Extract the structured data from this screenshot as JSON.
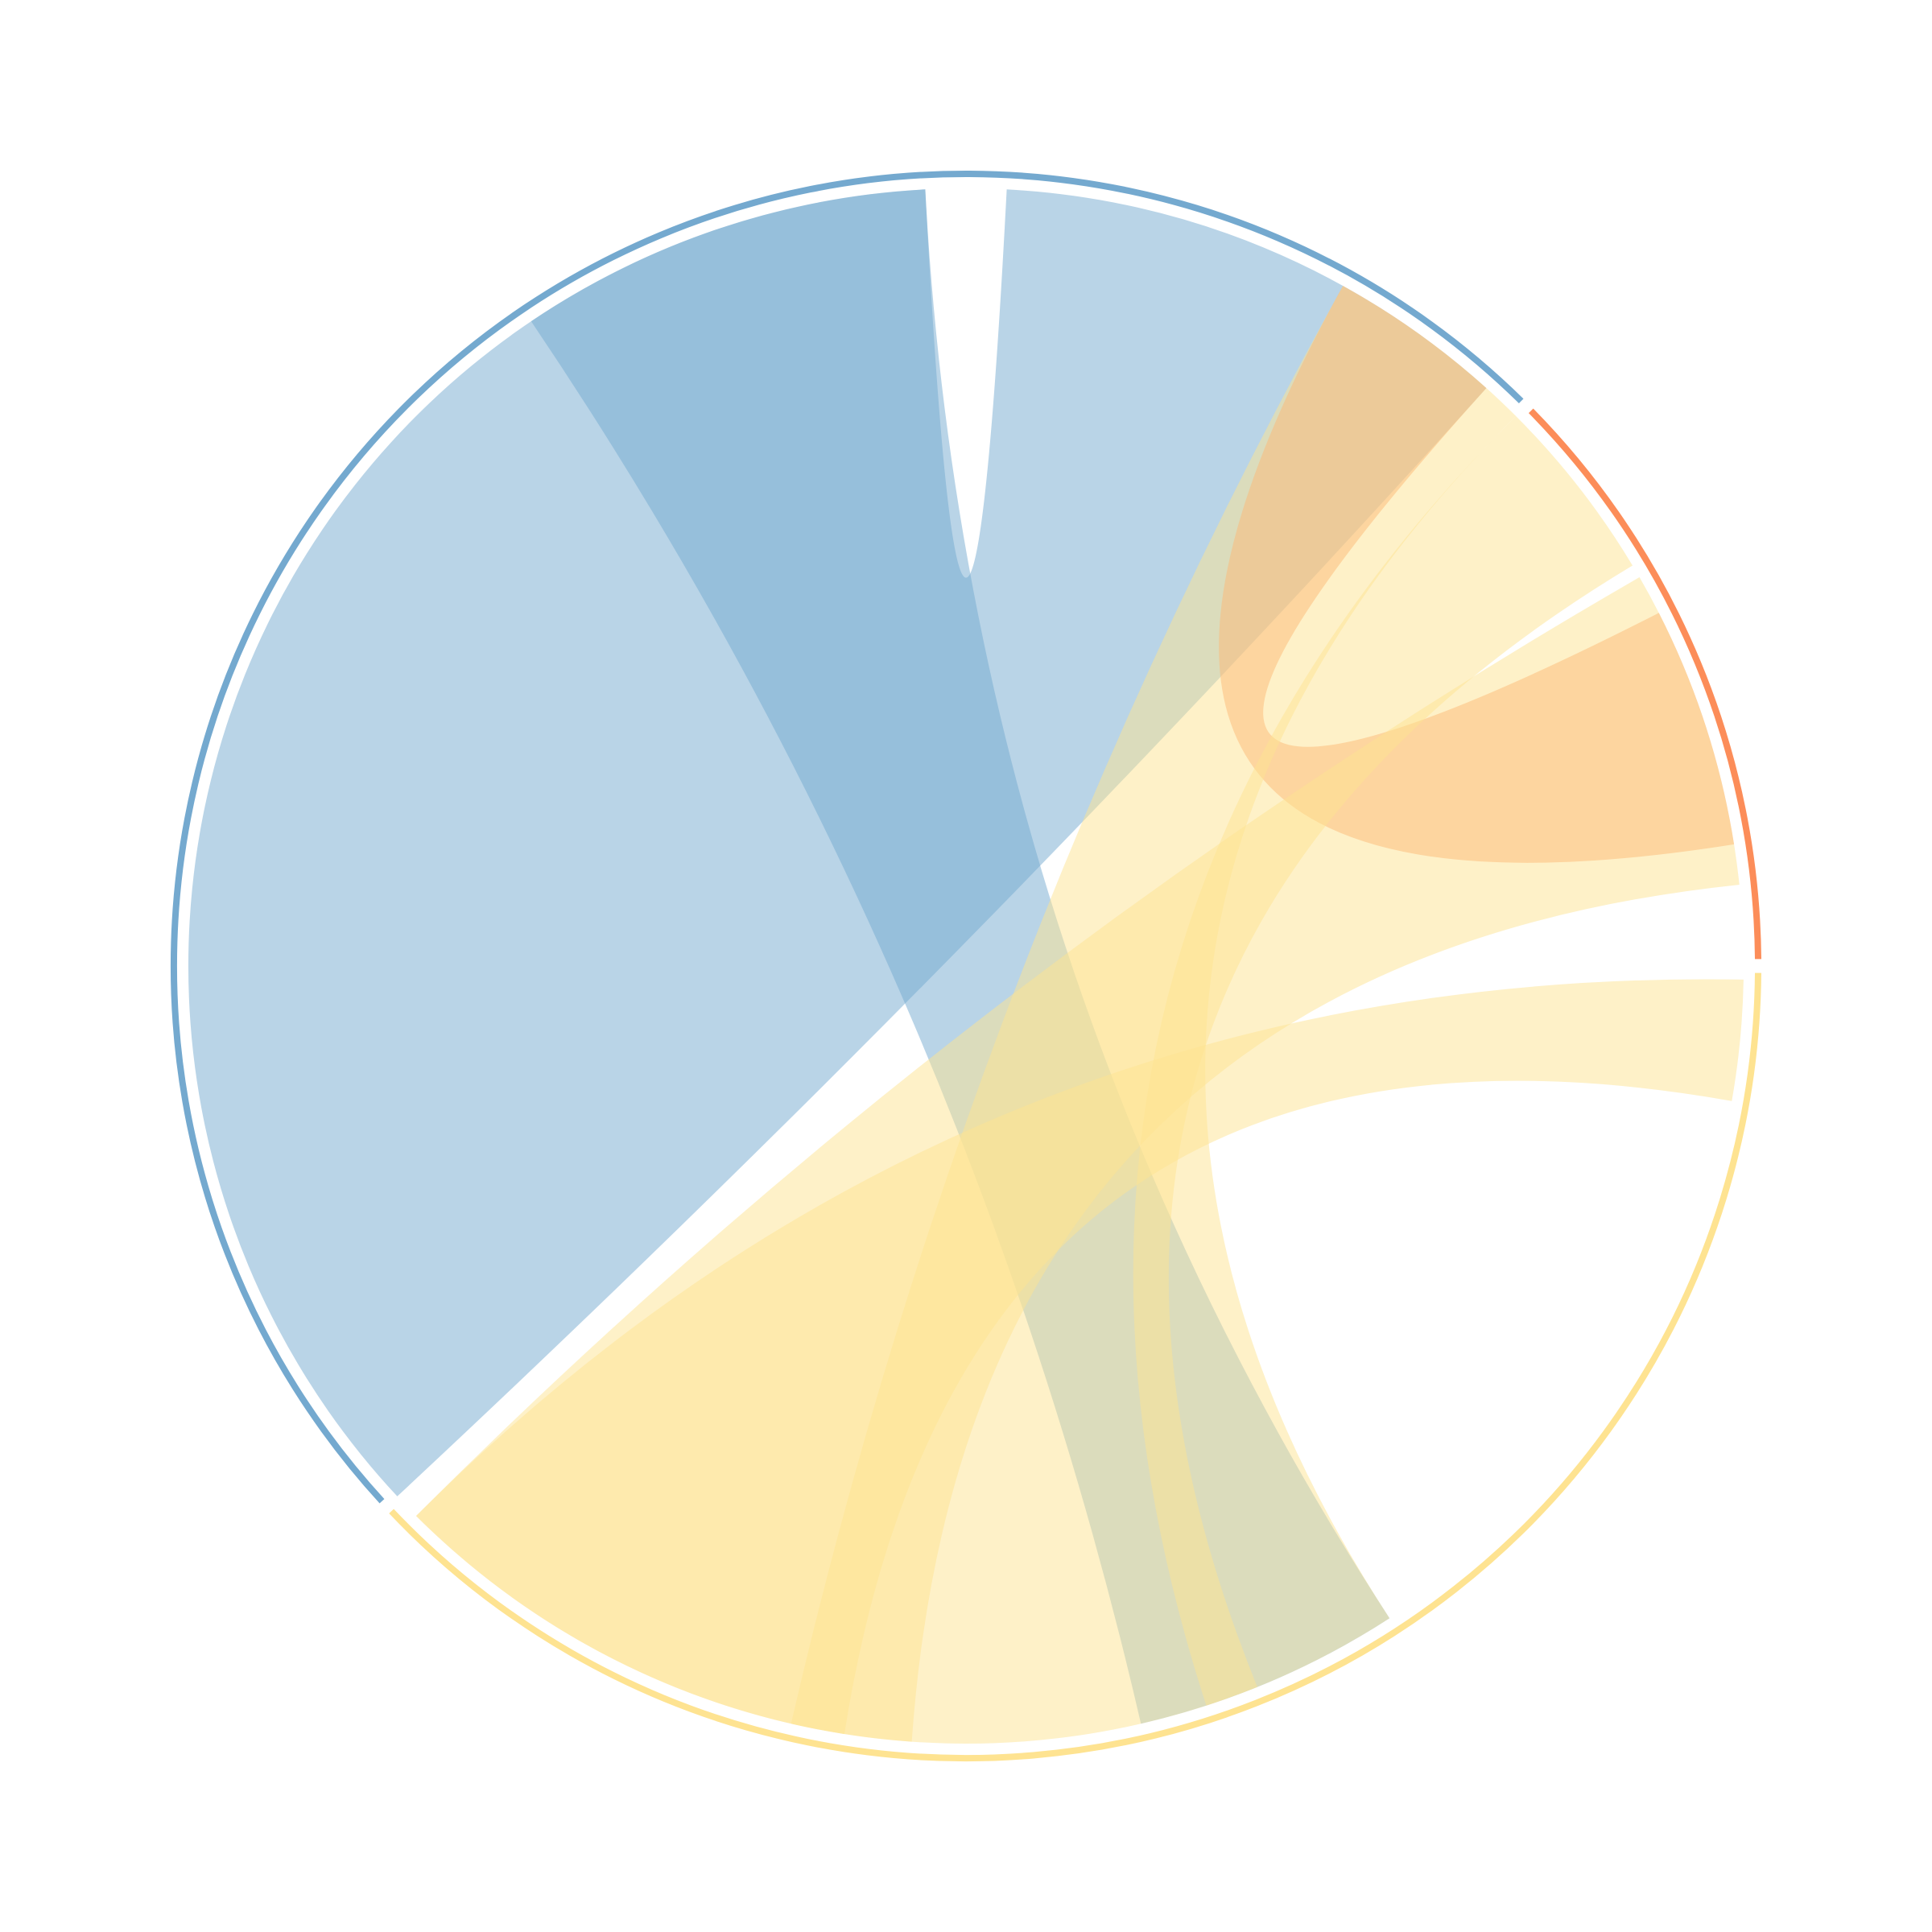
{
  "chart_data": {
    "type": "chord",
    "title": "",
    "legend": "none",
    "labels_shown": false,
    "groups": [
      {
        "id": "blue",
        "color": "#74a9cf",
        "start_deg": -133.0,
        "end_deg": 45.0
      },
      {
        "id": "orange",
        "color": "#fc8d59",
        "start_deg": 45.0,
        "end_deg": 90.0
      },
      {
        "id": "yellow",
        "color": "#fee391",
        "start_deg": 90.0,
        "end_deg": 227.0
      }
    ],
    "ribbon_opacity": 0.5,
    "chords": [
      {
        "source": "blue",
        "target": "blue",
        "source_arc_deg": [
          -133.0,
          -3.0
        ],
        "target_arc_deg": [
          3.0,
          42.0
        ],
        "color": "#74a9cf"
      },
      {
        "source": "blue",
        "target": "yellow",
        "source_arc_deg": [
          -34.0,
          -3.0
        ],
        "target_arc_deg": [
          147.0,
          167.0
        ],
        "color": "#74a9cf"
      },
      {
        "source": "blue",
        "target": "orange",
        "source_arc_deg": [
          29.0,
          42.0
        ],
        "target_arc_deg": [
          63.0,
          81.0
        ],
        "color": "#fc8d59"
      },
      {
        "source": "orange",
        "target": "yellow",
        "source_arc_deg": [
          45.0,
          59.0
        ],
        "target_arc_deg": [
          158.0,
          162.0
        ],
        "color": "#fee391"
      },
      {
        "source": "blue",
        "target": "yellow",
        "source_arc_deg": [
          29.0,
          45.0
        ],
        "target_arc_deg": [
          147.0,
          193.0
        ],
        "color": "#fee391"
      },
      {
        "source": "yellow",
        "target": "yellow",
        "source_arc_deg": [
          91.0,
          100.0
        ],
        "target_arc_deg": [
          189.0,
          225.0
        ],
        "color": "#fee391"
      },
      {
        "source": "blue",
        "target": "yellow",
        "source_arc_deg": [
          60.0,
          84.0
        ],
        "target_arc_deg": [
          184.0,
          225.0
        ],
        "color": "#fee391"
      }
    ]
  }
}
